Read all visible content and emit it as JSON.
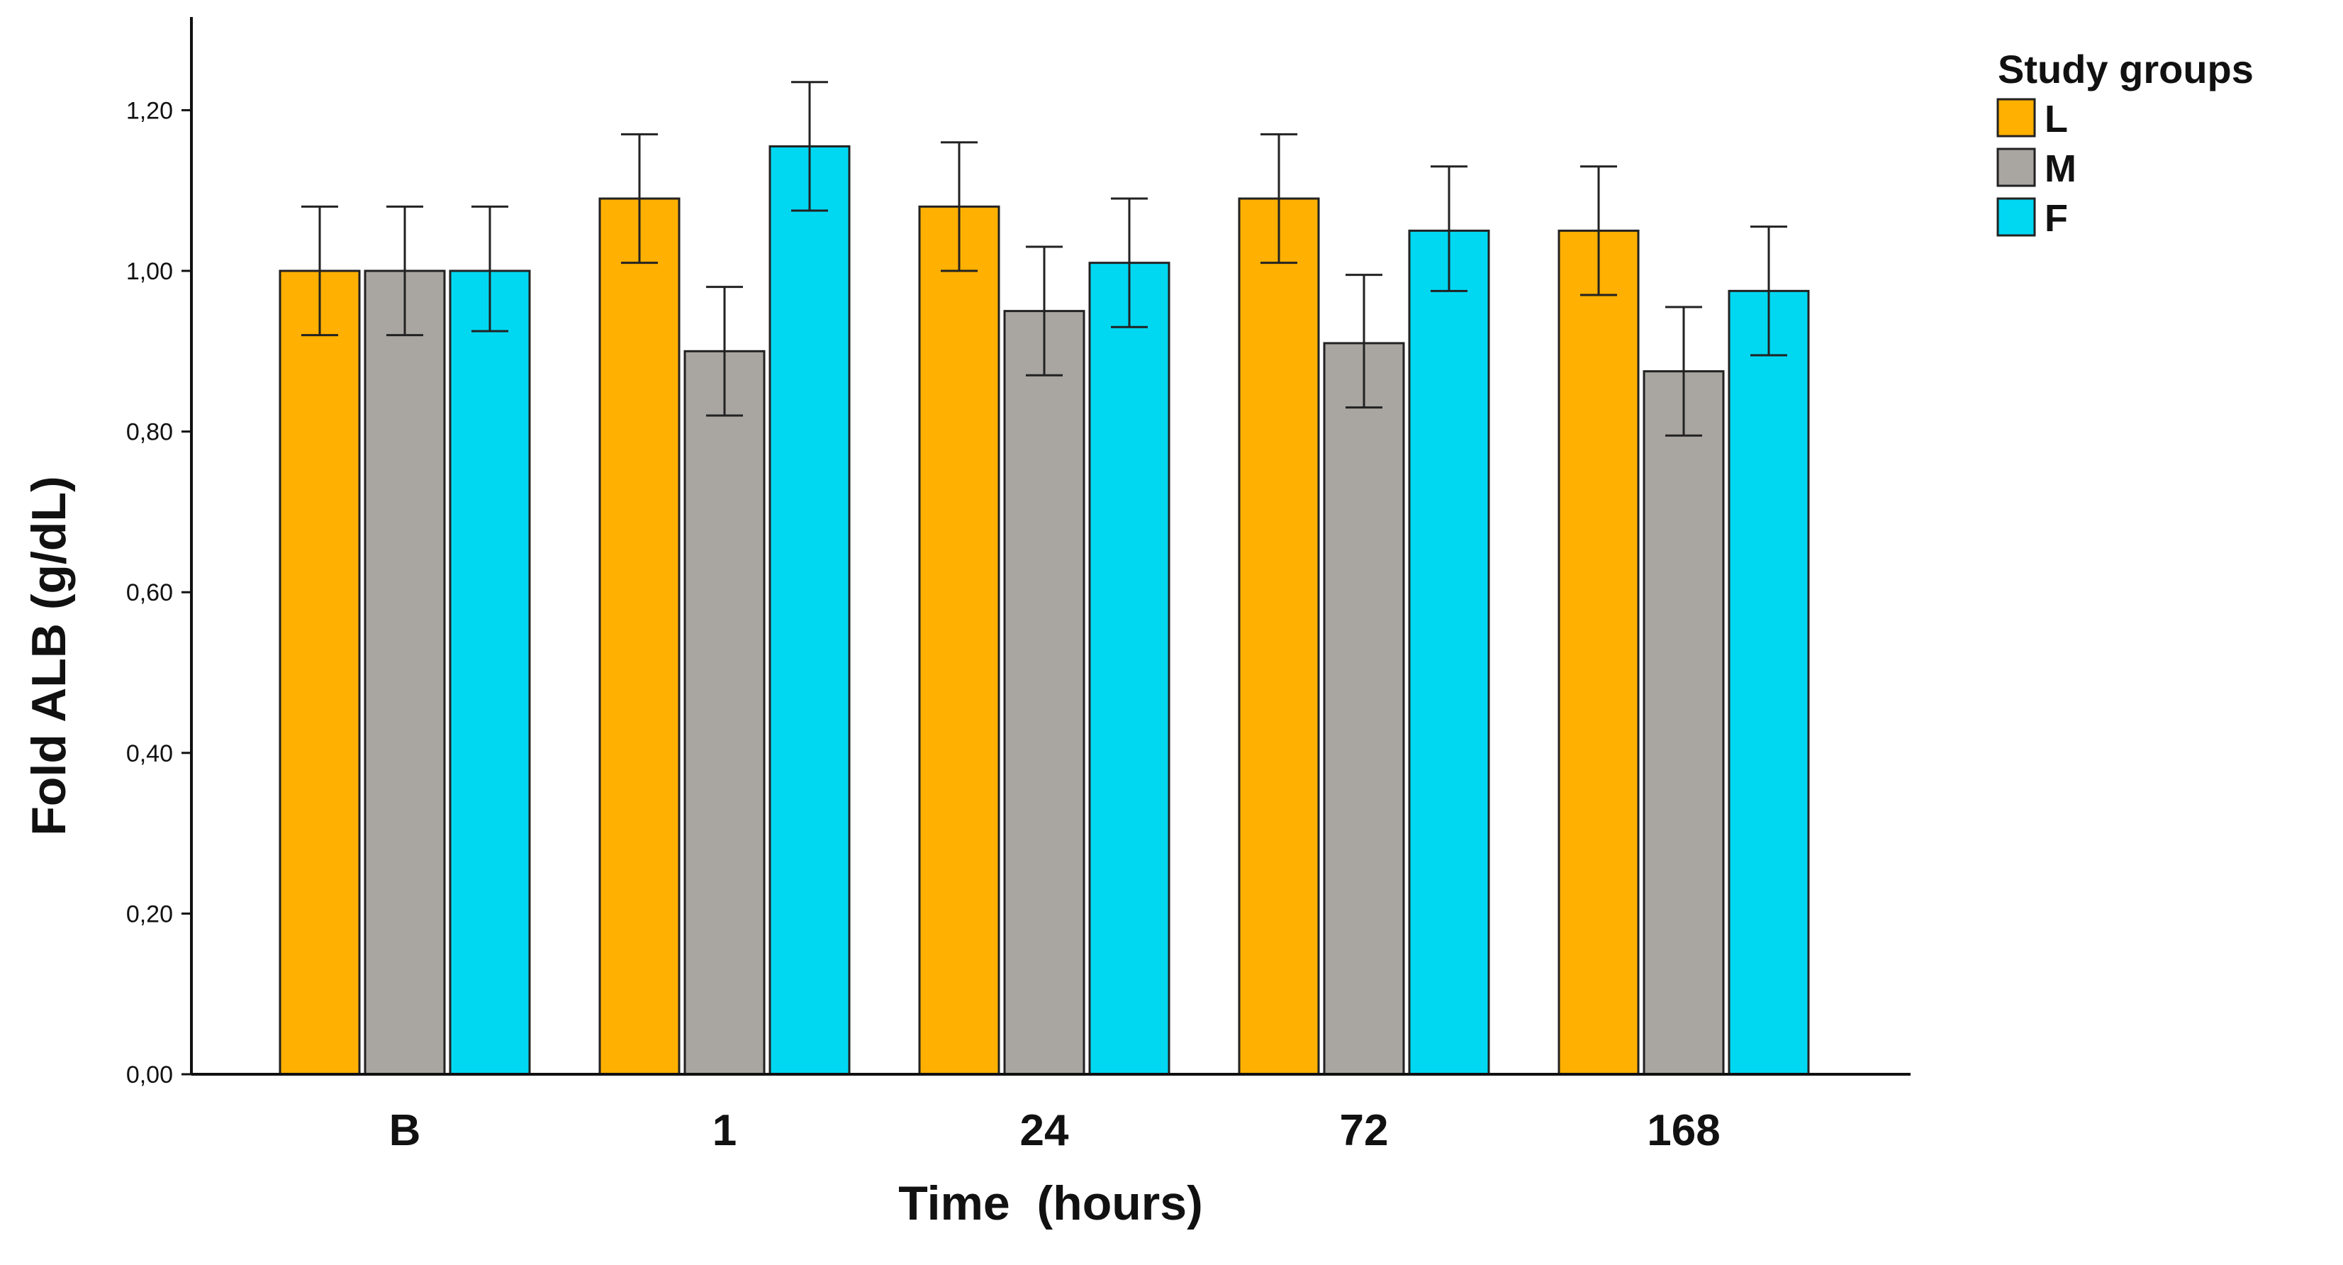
{
  "chart_data": {
    "type": "bar",
    "title": "",
    "xlabel": "Time  (hours)",
    "ylabel": "Fold ALB (g/dL)",
    "categories": [
      "B",
      "1",
      "24",
      "72",
      "168"
    ],
    "ylim": [
      0,
      1.3
    ],
    "yticks": [
      0,
      0.2,
      0.4,
      0.6,
      0.8,
      1.0,
      1.2
    ],
    "ytick_labels": [
      "0,00",
      "0,20",
      "0,40",
      "0,60",
      "0,80",
      "1,00",
      "1,20"
    ],
    "grid": false,
    "legend_title": "Study groups",
    "legend_position": "top-right",
    "series": [
      {
        "name": "L",
        "color": "#FFB000",
        "values": [
          1.0,
          1.09,
          1.08,
          1.09,
          1.05
        ],
        "err_low": [
          0.92,
          1.01,
          1.0,
          1.01,
          0.97
        ],
        "err_high": [
          1.08,
          1.17,
          1.16,
          1.17,
          1.13
        ]
      },
      {
        "name": "M",
        "color": "#A9A6A1",
        "values": [
          1.0,
          0.9,
          0.95,
          0.91,
          0.875
        ],
        "err_low": [
          0.92,
          0.82,
          0.87,
          0.83,
          0.795
        ],
        "err_high": [
          1.08,
          0.98,
          1.03,
          0.995,
          0.955
        ]
      },
      {
        "name": "F",
        "color": "#00D8F2",
        "values": [
          1.0,
          1.155,
          1.01,
          1.05,
          0.975
        ],
        "err_low": [
          0.925,
          1.075,
          0.93,
          0.975,
          0.895
        ],
        "err_high": [
          1.08,
          1.235,
          1.09,
          1.13,
          1.055
        ]
      }
    ]
  }
}
